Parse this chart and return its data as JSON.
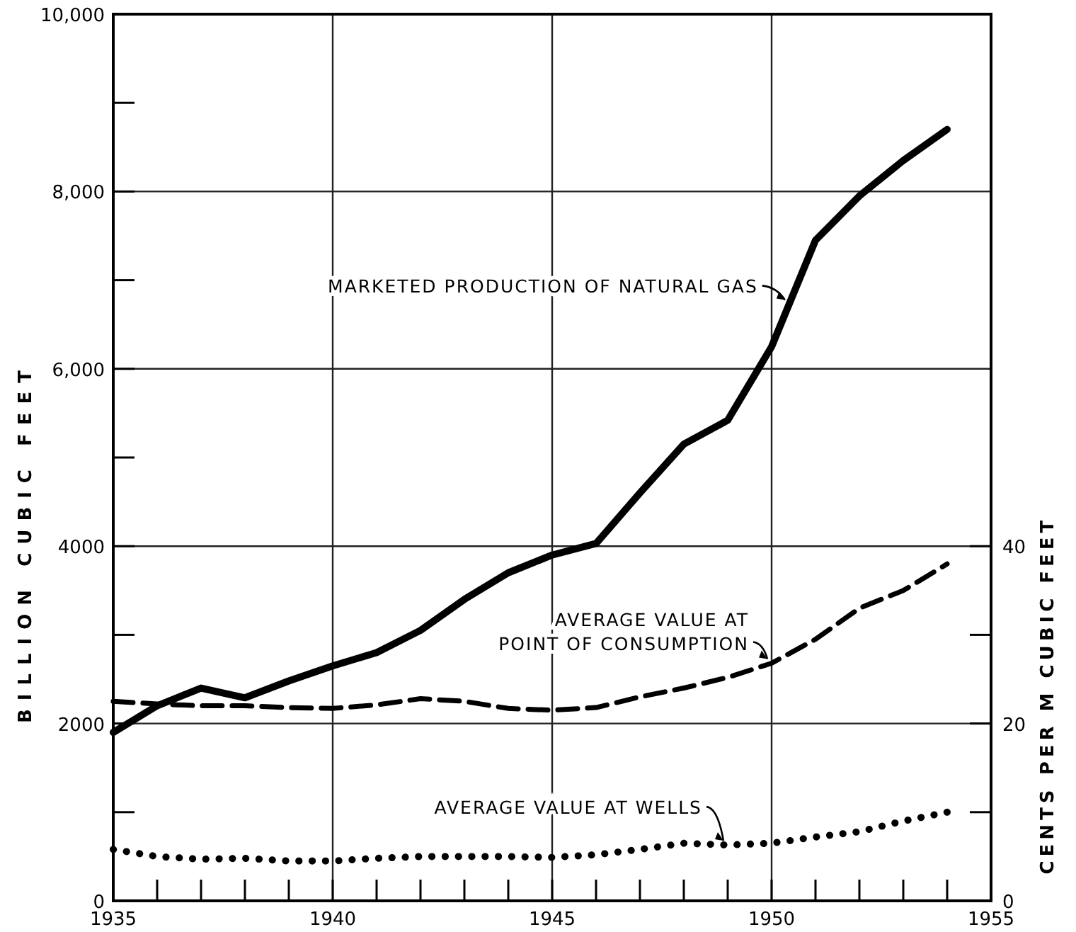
{
  "chart_data": {
    "type": "line",
    "ylabel": "BILLION CUBIC FEET",
    "y2label": "CENTS PER M CUBIC FEET",
    "x": [
      1935,
      1936,
      1937,
      1938,
      1939,
      1940,
      1941,
      1942,
      1943,
      1944,
      1945,
      1946,
      1947,
      1948,
      1949,
      1950,
      1951,
      1952,
      1953,
      1954
    ],
    "xlim": [
      1935,
      1955
    ],
    "xticks": [
      1935,
      {
        "value": 1936,
        "label": null
      },
      {
        "value": 1937,
        "label": null
      },
      {
        "value": 1938,
        "label": null
      },
      {
        "value": 1939,
        "label": null
      },
      1940,
      {
        "value": 1941,
        "label": null
      },
      {
        "value": 1942,
        "label": null
      },
      {
        "value": 1943,
        "label": null
      },
      {
        "value": 1944,
        "label": null
      },
      1945,
      {
        "value": 1946,
        "label": null
      },
      {
        "value": 1947,
        "label": null
      },
      {
        "value": 1948,
        "label": null
      },
      {
        "value": 1949,
        "label": null
      },
      1950,
      {
        "value": 1951,
        "label": null
      },
      {
        "value": 1952,
        "label": null
      },
      {
        "value": 1953,
        "label": null
      },
      {
        "value": 1954,
        "label": null
      },
      1955
    ],
    "ylim": [
      0,
      10000
    ],
    "yticks": [
      0,
      {
        "value": 1000,
        "label": null
      },
      2000,
      {
        "value": 3000,
        "label": null
      },
      4000,
      {
        "value": 5000,
        "label": null
      },
      {
        "value": 6000,
        "label": "6,000"
      },
      {
        "value": 7000,
        "label": null
      },
      {
        "value": 8000,
        "label": "8,000"
      },
      {
        "value": 9000,
        "label": null
      },
      {
        "value": 10000,
        "label": "10,000"
      }
    ],
    "y2lim": [
      0,
      100
    ],
    "y2ticks": [
      0,
      {
        "value": 10,
        "label": null
      },
      20,
      {
        "value": 30,
        "label": null
      },
      40
    ],
    "grid": true,
    "series": [
      {
        "name": "MARKETED PRODUCTION OF NATURAL GAS",
        "color": "#000000",
        "line_style": "solid",
        "values": [
          1900,
          2200,
          2400,
          2290,
          2480,
          2650,
          2800,
          3050,
          3400,
          3700,
          3900,
          4030,
          4600,
          5150,
          5420,
          6250,
          7450,
          7950,
          8350,
          8700
        ]
      },
      {
        "name": "AVERAGE VALUE AT POINT OF CONSUMPTION",
        "color": "#000000",
        "line_style": "dashed",
        "axis": "y2",
        "values": [
          22.5,
          22.2,
          22.0,
          22.0,
          21.8,
          21.7,
          22.1,
          22.8,
          22.5,
          21.7,
          21.5,
          21.8,
          23.0,
          24.0,
          25.2,
          26.8,
          29.5,
          33.0,
          35.0,
          38.0
        ]
      },
      {
        "name": "AVERAGE VALUE AT WELLS",
        "color": "#000000",
        "line_style": "dotted",
        "axis": "y2",
        "values": [
          5.8,
          5.0,
          4.7,
          4.8,
          4.5,
          4.5,
          4.8,
          5.0,
          5.0,
          5.0,
          4.9,
          5.2,
          5.8,
          6.5,
          6.3,
          6.5,
          7.2,
          7.8,
          9.0,
          10.0
        ]
      }
    ]
  }
}
